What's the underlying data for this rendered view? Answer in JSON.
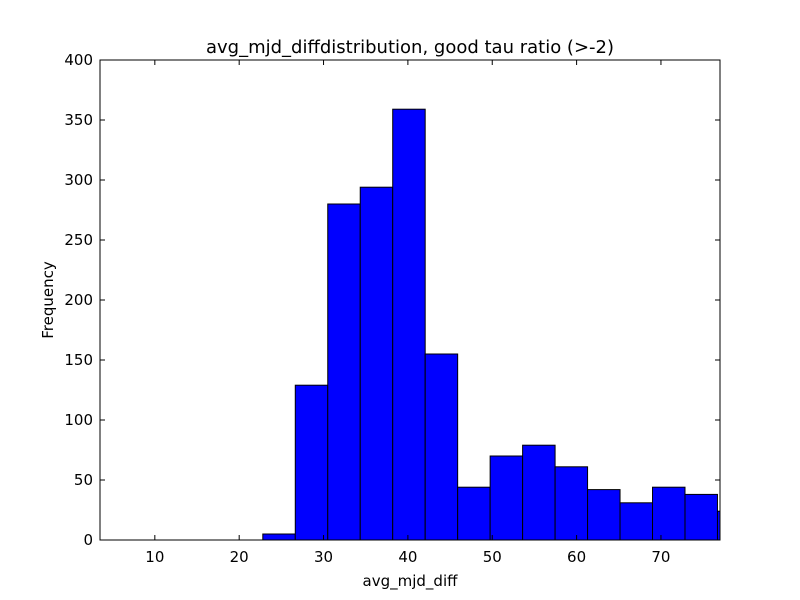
{
  "chart_data": {
    "type": "bar",
    "title": "avg_mjd_diffdistribution, good tau ratio (>-2)",
    "xlabel": "avg_mjd_diff",
    "ylabel": "Frequency",
    "xlim": [
      3.5,
      77.0
    ],
    "ylim": [
      0,
      400
    ],
    "xticks": [
      10,
      20,
      30,
      40,
      50,
      60,
      70
    ],
    "yticks": [
      0,
      50,
      100,
      150,
      200,
      250,
      300,
      350,
      400
    ],
    "bin_edges": [
      22.8,
      26.65,
      30.5,
      34.35,
      38.2,
      42.05,
      45.9,
      49.75,
      53.6,
      57.45,
      61.3,
      65.15,
      69.0,
      72.85,
      76.7,
      80.55
    ],
    "values": [
      5,
      129,
      280,
      294,
      359,
      155,
      44,
      70,
      79,
      61,
      42,
      31,
      44,
      38,
      24
    ],
    "bar_color": "#0000ff",
    "grid": false,
    "legend": "none"
  }
}
